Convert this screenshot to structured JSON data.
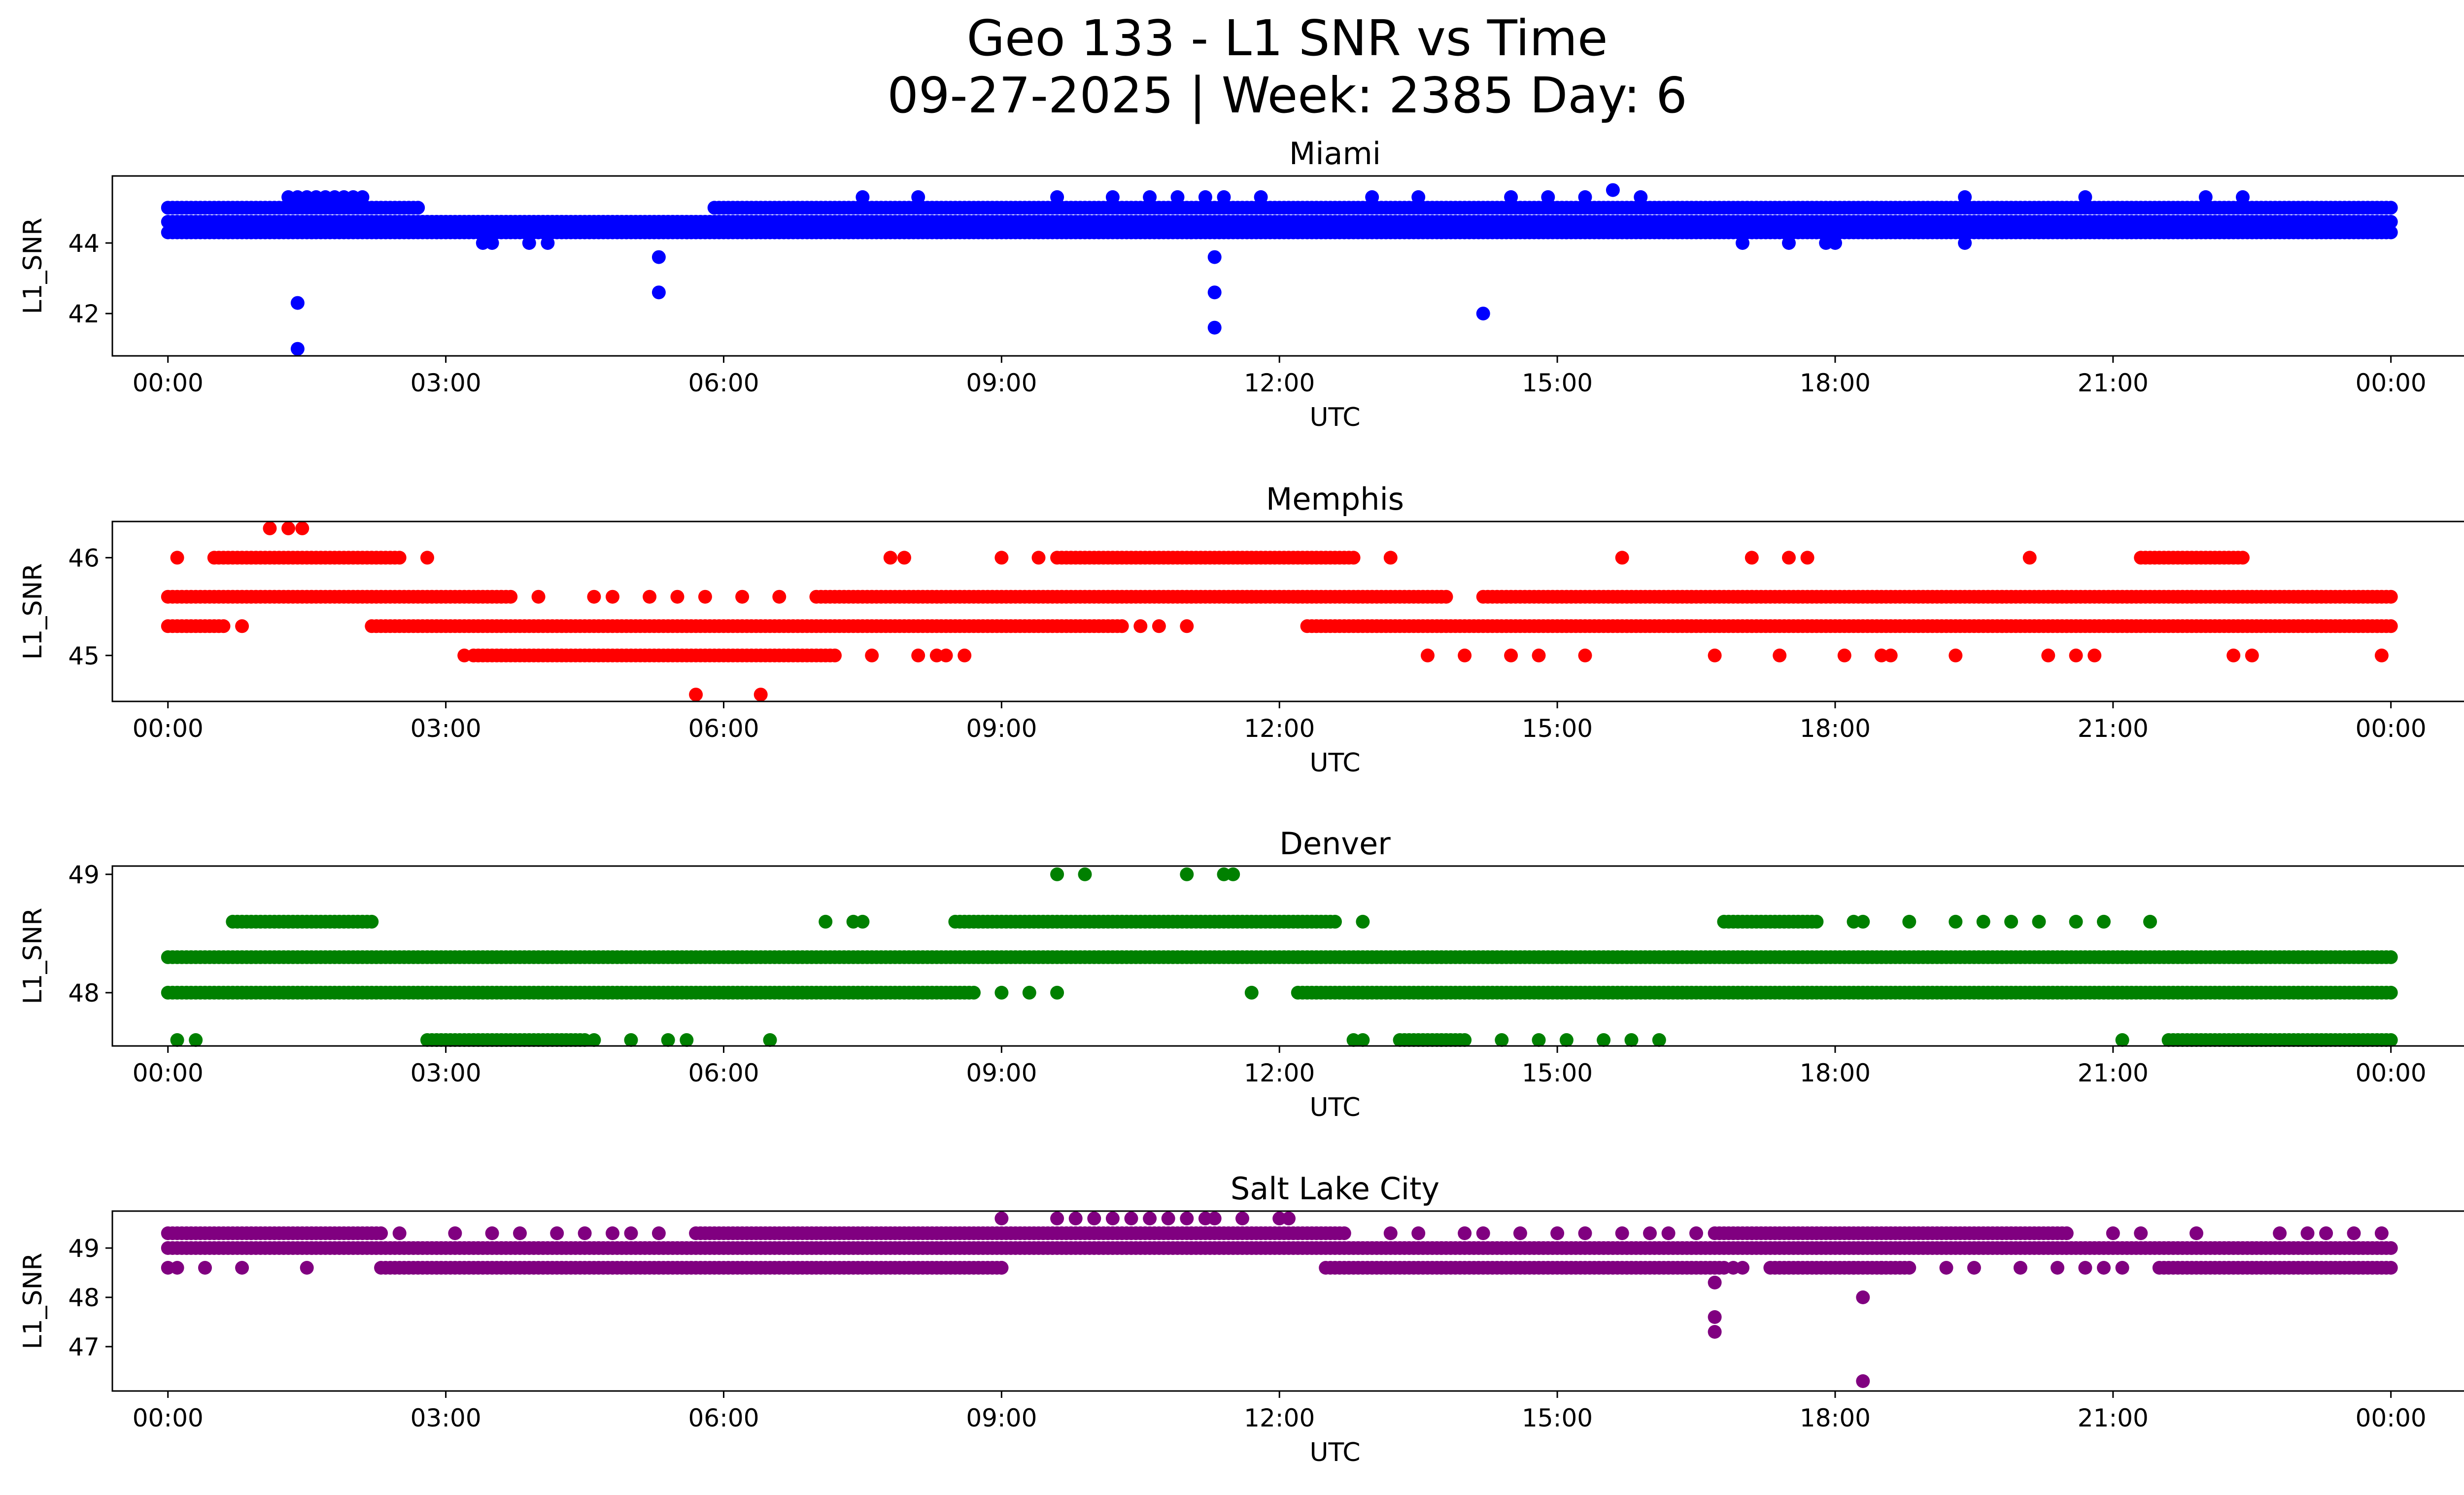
{
  "title_line1": "Geo 133 - L1 SNR vs Time",
  "title_line2": "09-27-2025 | Week: 2385 Day: 6",
  "chart_data": [
    {
      "type": "scatter",
      "title": "Miami",
      "color": "#0000ff",
      "xlabel": "UTC",
      "ylabel": "L1_SNR",
      "xlim": [
        -0.6,
        25.8
      ],
      "ylim": [
        40.8,
        45.9
      ],
      "xticks": [
        0,
        3,
        6,
        9,
        12,
        15,
        18,
        21,
        24
      ],
      "xtick_labels": [
        "00:00",
        "03:00",
        "06:00",
        "09:00",
        "12:00",
        "15:00",
        "18:00",
        "21:00",
        "00:00"
      ],
      "yticks": [
        42,
        44
      ],
      "ytick_labels": [
        "42",
        "44"
      ],
      "bands": [
        {
          "y": 44.3,
          "from": 0.0,
          "to": 24.0
        },
        {
          "y": 44.6,
          "from": 0.0,
          "to": 24.0
        },
        {
          "y": 45.0,
          "from": 0.0,
          "to": 2.7
        },
        {
          "y": 45.0,
          "from": 5.9,
          "to": 24.0
        }
      ],
      "sparse": [
        {
          "y": 45.3,
          "x": [
            1.3,
            1.4,
            1.5,
            1.6,
            1.7,
            1.8,
            1.9,
            2.0,
            2.1,
            7.5,
            8.1,
            9.6,
            10.2,
            10.6,
            10.9,
            11.2,
            11.4,
            11.8,
            13.0,
            13.5,
            14.5,
            14.9,
            15.3,
            15.9,
            19.4,
            20.7,
            22.0,
            22.4
          ]
        },
        {
          "y": 44.0,
          "x": [
            3.4,
            3.5,
            3.9,
            4.1,
            17.0,
            17.5,
            17.9,
            18.0,
            19.4
          ]
        },
        {
          "y": 45.5,
          "x": [
            15.6
          ]
        },
        {
          "y": 43.6,
          "x": [
            5.3,
            11.3
          ]
        },
        {
          "y": 42.6,
          "x": [
            5.3,
            11.3
          ]
        },
        {
          "y": 42.3,
          "x": [
            1.4
          ]
        },
        {
          "y": 42.0,
          "x": [
            14.2
          ]
        },
        {
          "y": 41.6,
          "x": [
            11.3
          ]
        },
        {
          "y": 41.0,
          "x": [
            1.4
          ]
        }
      ]
    },
    {
      "type": "scatter",
      "title": "Memphis",
      "color": "#ff0000",
      "xlabel": "UTC",
      "ylabel": "L1_SNR",
      "xlim": [
        -0.6,
        25.8
      ],
      "ylim": [
        44.53,
        46.37
      ],
      "xticks": [
        0,
        3,
        6,
        9,
        12,
        15,
        18,
        21,
        24
      ],
      "xtick_labels": [
        "00:00",
        "03:00",
        "06:00",
        "09:00",
        "12:00",
        "15:00",
        "18:00",
        "21:00",
        "00:00"
      ],
      "yticks": [
        45,
        46
      ],
      "ytick_labels": [
        "45",
        "46"
      ],
      "bands": [
        {
          "y": 45.6,
          "from": 0.0,
          "to": 3.7
        },
        {
          "y": 45.6,
          "from": 7.0,
          "to": 13.8
        },
        {
          "y": 45.6,
          "from": 14.2,
          "to": 24.0
        },
        {
          "y": 45.3,
          "from": 0.0,
          "to": 0.6
        },
        {
          "y": 45.3,
          "from": 2.2,
          "to": 10.3
        },
        {
          "y": 45.3,
          "from": 12.3,
          "to": 24.0
        },
        {
          "y": 45.0,
          "from": 3.3,
          "to": 7.2
        },
        {
          "y": 46.0,
          "from": 0.5,
          "to": 2.5
        },
        {
          "y": 46.0,
          "from": 9.6,
          "to": 12.8
        },
        {
          "y": 46.0,
          "from": 21.3,
          "to": 22.4
        }
      ],
      "sparse": [
        {
          "y": 46.3,
          "x": [
            1.1,
            1.3,
            1.45
          ]
        },
        {
          "y": 46.0,
          "x": [
            0.1,
            2.8,
            7.8,
            7.95,
            9.0,
            9.4,
            13.2,
            15.7,
            17.1,
            17.5,
            17.7,
            20.1
          ]
        },
        {
          "y": 45.6,
          "x": [
            4.0,
            4.6,
            4.8,
            5.2,
            5.5,
            5.8,
            6.2,
            6.6
          ]
        },
        {
          "y": 45.3,
          "x": [
            0.8,
            10.5,
            10.7,
            11.0
          ]
        },
        {
          "y": 45.0,
          "x": [
            3.2,
            7.6,
            8.1,
            8.3,
            8.4,
            8.6,
            13.6,
            14.0,
            14.5,
            14.8,
            15.3,
            16.7,
            17.4,
            18.1,
            18.5,
            18.6,
            19.3,
            20.3,
            20.6,
            20.8,
            22.3,
            22.5,
            23.9
          ]
        },
        {
          "y": 44.6,
          "x": [
            5.7,
            6.4
          ]
        }
      ]
    },
    {
      "type": "scatter",
      "title": "Denver",
      "color": "#008000",
      "xlabel": "UTC",
      "ylabel": "L1_SNR",
      "xlim": [
        -0.6,
        25.8
      ],
      "ylim": [
        47.55,
        49.07
      ],
      "xticks": [
        0,
        3,
        6,
        9,
        12,
        15,
        18,
        21,
        24
      ],
      "xtick_labels": [
        "00:00",
        "03:00",
        "06:00",
        "09:00",
        "12:00",
        "15:00",
        "18:00",
        "21:00",
        "00:00"
      ],
      "yticks": [
        48,
        49
      ],
      "ytick_labels": [
        "48",
        "49"
      ],
      "bands": [
        {
          "y": 48.3,
          "from": 0.0,
          "to": 24.0
        },
        {
          "y": 48.0,
          "from": 0.0,
          "to": 8.7
        },
        {
          "y": 48.0,
          "from": 12.2,
          "to": 24.0
        },
        {
          "y": 48.6,
          "from": 0.7,
          "to": 2.2
        },
        {
          "y": 48.6,
          "from": 8.5,
          "to": 12.6
        },
        {
          "y": 48.6,
          "from": 16.8,
          "to": 17.8
        },
        {
          "y": 47.6,
          "from": 2.8,
          "to": 4.5
        },
        {
          "y": 47.6,
          "from": 13.3,
          "to": 14.0
        },
        {
          "y": 47.6,
          "from": 21.6,
          "to": 24.0
        }
      ],
      "sparse": [
        {
          "y": 49.0,
          "x": [
            9.6,
            9.9,
            11.0,
            11.4,
            11.5
          ]
        },
        {
          "y": 48.6,
          "x": [
            7.1,
            7.4,
            7.5,
            12.9,
            18.2,
            18.3,
            18.8,
            19.3,
            19.6,
            19.9,
            20.2,
            20.6,
            20.9,
            21.4
          ]
        },
        {
          "y": 48.0,
          "x": [
            9.0,
            9.3,
            9.6,
            11.7
          ]
        },
        {
          "y": 47.6,
          "x": [
            0.1,
            0.3,
            4.6,
            5.0,
            5.4,
            5.6,
            6.5,
            12.8,
            12.9,
            14.4,
            14.8,
            15.1,
            15.5,
            15.8,
            16.1,
            21.1
          ]
        }
      ]
    },
    {
      "type": "scatter",
      "title": "Salt Lake City",
      "color": "#800080",
      "xlabel": "UTC",
      "ylabel": "L1_SNR",
      "xlim": [
        -0.6,
        25.8
      ],
      "ylim": [
        46.1,
        49.75
      ],
      "xticks": [
        0,
        3,
        6,
        9,
        12,
        15,
        18,
        21,
        24
      ],
      "xtick_labels": [
        "00:00",
        "03:00",
        "06:00",
        "09:00",
        "12:00",
        "15:00",
        "18:00",
        "21:00",
        "00:00"
      ],
      "yticks": [
        47,
        48,
        49
      ],
      "ytick_labels": [
        "47",
        "48",
        "49"
      ],
      "bands": [
        {
          "y": 49.0,
          "from": 0.0,
          "to": 24.0
        },
        {
          "y": 49.3,
          "from": 0.0,
          "to": 2.3
        },
        {
          "y": 49.3,
          "from": 5.7,
          "to": 12.7
        },
        {
          "y": 49.3,
          "from": 16.7,
          "to": 20.5
        },
        {
          "y": 48.6,
          "from": 2.3,
          "to": 9.0
        },
        {
          "y": 48.6,
          "from": 12.5,
          "to": 16.8
        },
        {
          "y": 48.6,
          "from": 17.3,
          "to": 18.8
        },
        {
          "y": 48.6,
          "from": 21.5,
          "to": 24.0
        }
      ],
      "sparse": [
        {
          "y": 49.6,
          "x": [
            9.0,
            9.6,
            9.8,
            10.0,
            10.2,
            10.4,
            10.6,
            10.8,
            11.0,
            11.2,
            11.3,
            11.6,
            12.0,
            12.1
          ]
        },
        {
          "y": 49.3,
          "x": [
            2.5,
            3.1,
            3.5,
            3.8,
            4.2,
            4.5,
            4.8,
            5.0,
            5.3,
            13.2,
            13.5,
            14.0,
            14.2,
            14.6,
            15.0,
            15.3,
            15.7,
            16.0,
            16.2,
            16.5,
            21.0,
            21.3,
            21.9,
            22.8,
            23.1,
            23.3,
            23.6,
            23.9
          ]
        },
        {
          "y": 48.6,
          "x": [
            0.0,
            0.1,
            0.4,
            0.8,
            1.5,
            9.0,
            16.9,
            17.0,
            18.2,
            18.5,
            19.2,
            19.5,
            20.0,
            20.4,
            20.7,
            20.9,
            21.1
          ]
        },
        {
          "y": 48.3,
          "x": [
            16.7
          ]
        },
        {
          "y": 48.0,
          "x": [
            18.3
          ]
        },
        {
          "y": 47.6,
          "x": [
            16.7
          ]
        },
        {
          "y": 47.3,
          "x": [
            16.7
          ]
        },
        {
          "y": 46.3,
          "x": [
            18.3
          ]
        }
      ]
    }
  ]
}
